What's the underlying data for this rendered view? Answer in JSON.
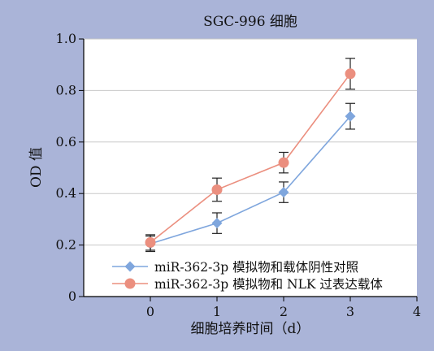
{
  "chart_data": {
    "type": "line",
    "title": "SGC-996 细胞",
    "xlabel": "细胞培养时间（d）",
    "ylabel": "OD 值",
    "xlim": [
      -1,
      4
    ],
    "ylim": [
      0,
      1.0
    ],
    "xticks": [
      0,
      1,
      2,
      3,
      4
    ],
    "yticks": [
      0,
      0.2,
      0.4,
      0.6,
      0.8,
      1.0
    ],
    "xtick_labels": [
      "0",
      "1",
      "2",
      "3",
      "4"
    ],
    "ytick_labels": [
      "0",
      "0.2",
      "0.4",
      "0.6",
      "0.8",
      "1.0"
    ],
    "grid": "horizontal",
    "legend_position": "bottom-right",
    "x": [
      0,
      1,
      2,
      3
    ],
    "series": [
      {
        "name": "miR-362-3p 模拟物和载体阴性对照",
        "marker": "diamond",
        "color": "#7fa6dd",
        "values": [
          0.205,
          0.285,
          0.405,
          0.7
        ],
        "errors": [
          0.03,
          0.04,
          0.04,
          0.05
        ]
      },
      {
        "name": "miR-362-3p 模拟物和 NLK 过表达载体",
        "marker": "circle",
        "color": "#eb8f7f",
        "values": [
          0.21,
          0.415,
          0.52,
          0.865
        ],
        "errors": [
          0.03,
          0.045,
          0.04,
          0.06
        ]
      }
    ],
    "colors": {
      "plot_bg": "#ffffff",
      "page_bg": "#aab4d8",
      "grid": "#c8c8c8",
      "axis": "#000000"
    }
  }
}
